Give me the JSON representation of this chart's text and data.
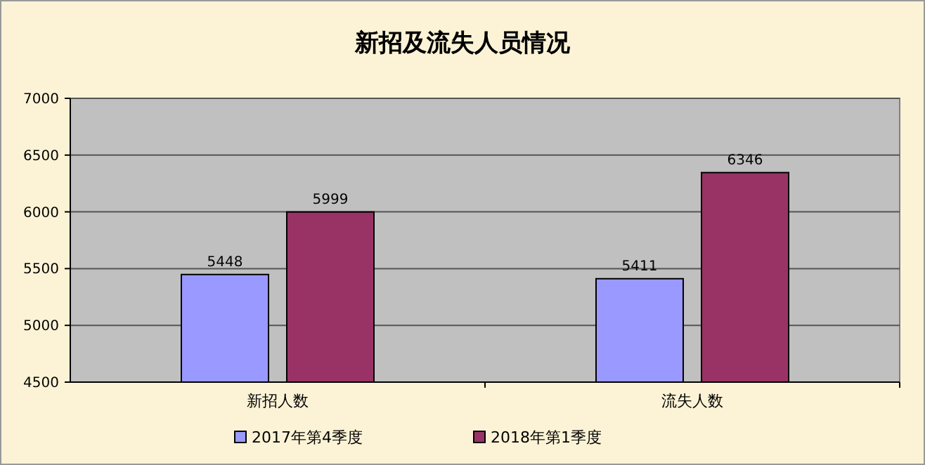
{
  "chart_data": {
    "type": "bar",
    "title": "新招及流失人员情况",
    "categories": [
      "新招人数",
      "流失人数"
    ],
    "series": [
      {
        "name": "2017年第4季度",
        "color": "#9999ff",
        "values": [
          5448,
          5411
        ]
      },
      {
        "name": "2018年第1季度",
        "color": "#993366",
        "values": [
          5999,
          6346
        ]
      }
    ],
    "ylim": [
      4500,
      7000
    ],
    "yticks": [
      4500,
      5000,
      5500,
      6000,
      6500,
      7000
    ],
    "grid": "y",
    "legend": "bottom",
    "data_labels": true
  }
}
